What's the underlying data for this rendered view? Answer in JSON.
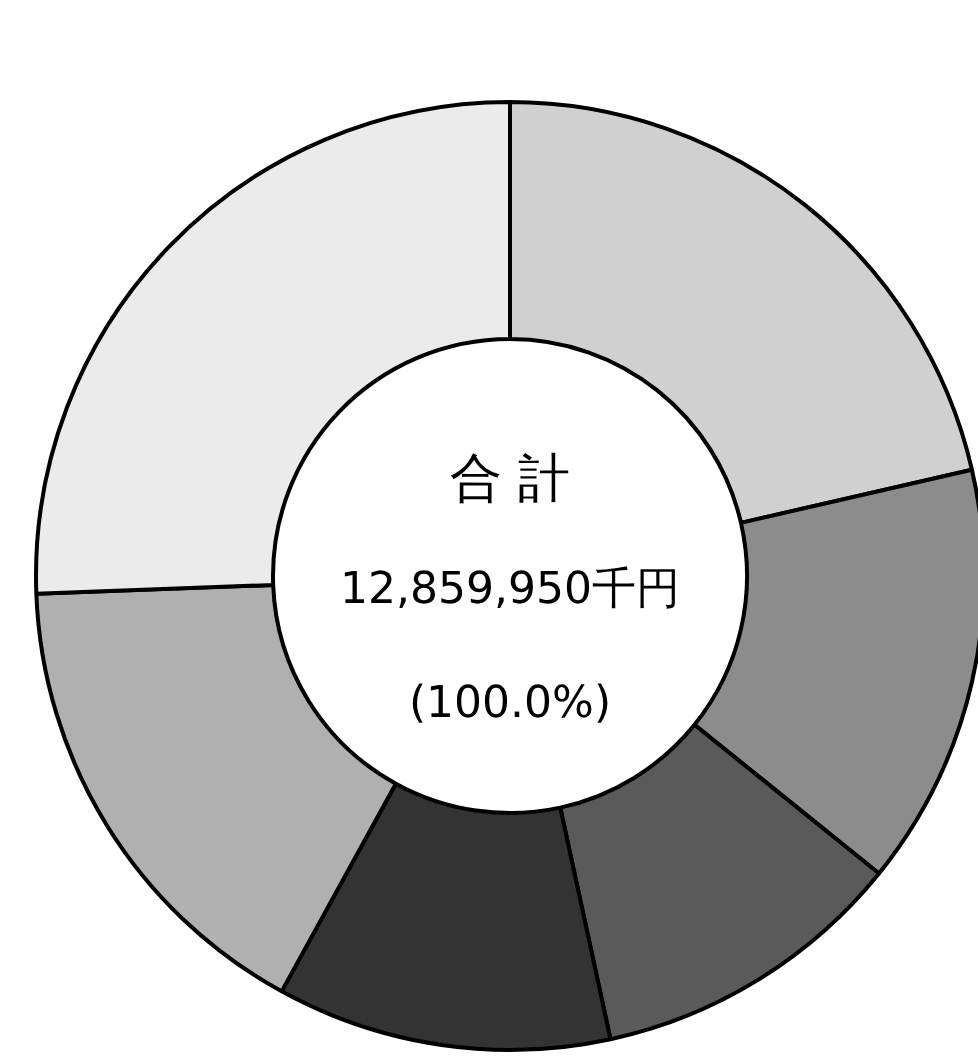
{
  "chart_data": {
    "type": "donut",
    "categories": [
      null,
      null,
      null,
      null,
      null,
      null
    ],
    "values": [
      21.4,
      14.4,
      10.8,
      11.4,
      16.4,
      25.6
    ],
    "colors": [
      "#d0d0d0",
      "#8c8c8c",
      "#5a5a5a",
      "#333333",
      "#b0b0b0",
      "#ebebeb"
    ],
    "annotations": [
      "合 計",
      "12,859,950千円",
      "(100.0%)"
    ],
    "legend": false
  }
}
